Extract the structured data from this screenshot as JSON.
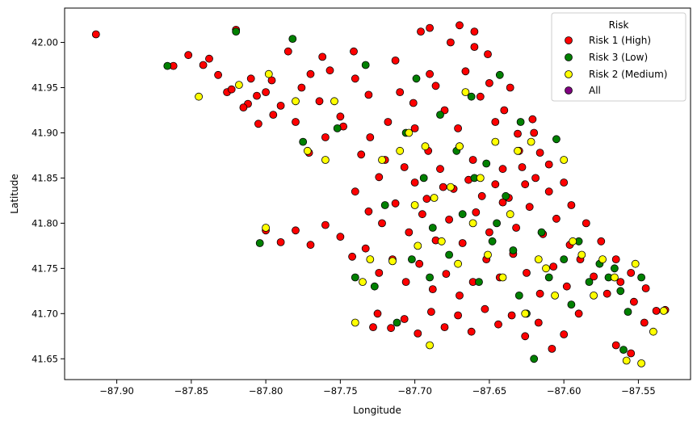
{
  "chart_data": {
    "type": "scatter",
    "title": "",
    "xlabel": "Longitude",
    "ylabel": "Latitude",
    "xlim": [
      -87.935,
      -87.515
    ],
    "ylim": [
      41.627,
      42.038
    ],
    "xticks": [
      -87.9,
      -87.85,
      -87.8,
      -87.75,
      -87.7,
      -87.65,
      -87.6,
      -87.55
    ],
    "xtick_labels": [
      "−87.90",
      "−87.85",
      "−87.80",
      "−87.75",
      "−87.70",
      "−87.65",
      "−87.60",
      "−87.55"
    ],
    "yticks": [
      41.65,
      41.7,
      41.75,
      41.8,
      41.85,
      41.9,
      41.95,
      42.0
    ],
    "ytick_labels": [
      "41.65",
      "41.70",
      "41.75",
      "41.80",
      "41.85",
      "41.90",
      "41.95",
      "42.00"
    ],
    "grid": false,
    "legend": {
      "title": "Risk",
      "placement": "top-right",
      "entries": [
        {
          "label": "Risk 1 (High)",
          "color": "#ff0000"
        },
        {
          "label": "Risk 3 (Low)",
          "color": "#008000"
        },
        {
          "label": "Risk 2 (Medium)",
          "color": "#ffff00"
        },
        {
          "label": "All",
          "color": "#800080"
        }
      ]
    },
    "series": [
      {
        "name": "Risk 1 (High)",
        "color": "#ff0000",
        "points": [
          [
            -87.914,
            42.009
          ],
          [
            -87.862,
            41.974
          ],
          [
            -87.852,
            41.986
          ],
          [
            -87.838,
            41.982
          ],
          [
            -87.826,
            41.945
          ],
          [
            -87.82,
            42.014
          ],
          [
            -87.812,
            41.932
          ],
          [
            -87.805,
            41.91
          ],
          [
            -87.796,
            41.958
          ],
          [
            -87.785,
            41.99
          ],
          [
            -87.776,
            41.95
          ],
          [
            -87.771,
            41.878
          ],
          [
            -87.764,
            41.935
          ],
          [
            -87.757,
            41.969
          ],
          [
            -87.748,
            41.907
          ],
          [
            -87.741,
            41.99
          ],
          [
            -87.736,
            41.876
          ],
          [
            -87.731,
            41.942
          ],
          [
            -87.724,
            41.851
          ],
          [
            -87.718,
            41.912
          ],
          [
            -87.713,
            41.98
          ],
          [
            -87.707,
            41.862
          ],
          [
            -87.701,
            41.933
          ],
          [
            -87.696,
            42.012
          ],
          [
            -87.691,
            41.88
          ],
          [
            -87.686,
            41.952
          ],
          [
            -87.681,
            41.84
          ],
          [
            -87.676,
            42.0
          ],
          [
            -87.671,
            41.905
          ],
          [
            -87.666,
            41.968
          ],
          [
            -87.661,
            41.87
          ],
          [
            -87.656,
            41.94
          ],
          [
            -87.651,
            41.987
          ],
          [
            -87.646,
            41.912
          ],
          [
            -87.641,
            41.86
          ],
          [
            -87.636,
            41.95
          ],
          [
            -87.631,
            41.899
          ],
          [
            -87.626,
            41.843
          ],
          [
            -87.621,
            41.915
          ],
          [
            -87.616,
            41.878
          ],
          [
            -87.61,
            41.835
          ],
          [
            -87.74,
            41.835
          ],
          [
            -87.731,
            41.813
          ],
          [
            -87.722,
            41.8
          ],
          [
            -87.713,
            41.822
          ],
          [
            -87.704,
            41.79
          ],
          [
            -87.695,
            41.81
          ],
          [
            -87.686,
            41.781
          ],
          [
            -87.677,
            41.804
          ],
          [
            -87.668,
            41.778
          ],
          [
            -87.659,
            41.812
          ],
          [
            -87.65,
            41.79
          ],
          [
            -87.641,
            41.823
          ],
          [
            -87.632,
            41.795
          ],
          [
            -87.623,
            41.818
          ],
          [
            -87.614,
            41.788
          ],
          [
            -87.605,
            41.805
          ],
          [
            -87.596,
            41.776
          ],
          [
            -87.8,
            41.792
          ],
          [
            -87.79,
            41.779
          ],
          [
            -87.78,
            41.792
          ],
          [
            -87.77,
            41.776
          ],
          [
            -87.76,
            41.798
          ],
          [
            -87.75,
            41.785
          ],
          [
            -87.742,
            41.763
          ],
          [
            -87.733,
            41.772
          ],
          [
            -87.724,
            41.745
          ],
          [
            -87.715,
            41.76
          ],
          [
            -87.706,
            41.735
          ],
          [
            -87.697,
            41.755
          ],
          [
            -87.688,
            41.727
          ],
          [
            -87.679,
            41.744
          ],
          [
            -87.67,
            41.72
          ],
          [
            -87.661,
            41.735
          ],
          [
            -87.652,
            41.76
          ],
          [
            -87.643,
            41.74
          ],
          [
            -87.634,
            41.766
          ],
          [
            -87.625,
            41.745
          ],
          [
            -87.616,
            41.722
          ],
          [
            -87.607,
            41.752
          ],
          [
            -87.598,
            41.73
          ],
          [
            -87.589,
            41.76
          ],
          [
            -87.58,
            41.741
          ],
          [
            -87.571,
            41.722
          ],
          [
            -87.562,
            41.735
          ],
          [
            -87.553,
            41.713
          ],
          [
            -87.545,
            41.728
          ],
          [
            -87.538,
            41.703
          ],
          [
            -87.532,
            41.704
          ],
          [
            -87.546,
            41.69
          ],
          [
            -87.555,
            41.656
          ],
          [
            -87.565,
            41.665
          ],
          [
            -87.725,
            41.7
          ],
          [
            -87.716,
            41.684
          ],
          [
            -87.707,
            41.694
          ],
          [
            -87.698,
            41.678
          ],
          [
            -87.689,
            41.702
          ],
          [
            -87.68,
            41.685
          ],
          [
            -87.671,
            41.698
          ],
          [
            -87.662,
            41.68
          ],
          [
            -87.653,
            41.705
          ],
          [
            -87.644,
            41.688
          ],
          [
            -87.635,
            41.698
          ],
          [
            -87.626,
            41.675
          ],
          [
            -87.617,
            41.69
          ],
          [
            -87.608,
            41.661
          ],
          [
            -87.6,
            41.677
          ],
          [
            -87.59,
            41.7
          ],
          [
            -87.728,
            41.685
          ],
          [
            -87.7,
            41.845
          ],
          [
            -87.692,
            41.827
          ],
          [
            -87.683,
            41.86
          ],
          [
            -87.674,
            41.838
          ],
          [
            -87.664,
            41.848
          ],
          [
            -87.655,
            41.83
          ],
          [
            -87.646,
            41.843
          ],
          [
            -87.637,
            41.828
          ],
          [
            -87.628,
            41.862
          ],
          [
            -87.619,
            41.85
          ],
          [
            -87.61,
            41.865
          ],
          [
            -87.6,
            41.845
          ],
          [
            -87.595,
            41.82
          ],
          [
            -87.585,
            41.8
          ],
          [
            -87.575,
            41.78
          ],
          [
            -87.565,
            41.76
          ],
          [
            -87.555,
            41.745
          ],
          [
            -87.76,
            41.895
          ],
          [
            -87.75,
            41.918
          ],
          [
            -87.74,
            41.96
          ],
          [
            -87.73,
            41.895
          ],
          [
            -87.72,
            41.87
          ],
          [
            -87.71,
            41.945
          ],
          [
            -87.7,
            41.905
          ],
          [
            -87.69,
            41.965
          ],
          [
            -87.68,
            41.925
          ],
          [
            -87.67,
            41.885
          ],
          [
            -87.66,
            41.995
          ],
          [
            -87.65,
            41.955
          ],
          [
            -87.64,
            41.925
          ],
          [
            -87.63,
            41.88
          ],
          [
            -87.62,
            41.9
          ],
          [
            -87.69,
            42.016
          ],
          [
            -87.67,
            42.019
          ],
          [
            -87.66,
            42.012
          ],
          [
            -87.78,
            41.912
          ],
          [
            -87.79,
            41.93
          ],
          [
            -87.8,
            41.945
          ],
          [
            -87.81,
            41.96
          ],
          [
            -87.77,
            41.965
          ],
          [
            -87.762,
            41.984
          ],
          [
            -87.832,
            41.964
          ],
          [
            -87.842,
            41.975
          ],
          [
            -87.823,
            41.948
          ],
          [
            -87.815,
            41.928
          ],
          [
            -87.806,
            41.941
          ],
          [
            -87.795,
            41.92
          ]
        ]
      },
      {
        "name": "Risk 3 (Low)",
        "color": "#008000",
        "points": [
          [
            -87.866,
            41.974
          ],
          [
            -87.82,
            42.012
          ],
          [
            -87.804,
            41.778
          ],
          [
            -87.782,
            42.004
          ],
          [
            -87.775,
            41.89
          ],
          [
            -87.752,
            41.905
          ],
          [
            -87.74,
            41.74
          ],
          [
            -87.733,
            41.975
          ],
          [
            -87.727,
            41.73
          ],
          [
            -87.72,
            41.82
          ],
          [
            -87.712,
            41.69
          ],
          [
            -87.706,
            41.9
          ],
          [
            -87.699,
            41.96
          ],
          [
            -87.694,
            41.85
          ],
          [
            -87.688,
            41.795
          ],
          [
            -87.683,
            41.92
          ],
          [
            -87.677,
            41.765
          ],
          [
            -87.672,
            41.88
          ],
          [
            -87.668,
            41.81
          ],
          [
            -87.662,
            41.94
          ],
          [
            -87.657,
            41.735
          ],
          [
            -87.652,
            41.866
          ],
          [
            -87.648,
            41.78
          ],
          [
            -87.643,
            41.964
          ],
          [
            -87.639,
            41.83
          ],
          [
            -87.634,
            41.77
          ],
          [
            -87.629,
            41.912
          ],
          [
            -87.625,
            41.7
          ],
          [
            -87.62,
            41.65
          ],
          [
            -87.615,
            41.79
          ],
          [
            -87.61,
            41.74
          ],
          [
            -87.605,
            41.893
          ],
          [
            -87.6,
            41.76
          ],
          [
            -87.595,
            41.71
          ],
          [
            -87.59,
            41.78
          ],
          [
            -87.583,
            41.735
          ],
          [
            -87.576,
            41.755
          ],
          [
            -87.57,
            41.74
          ],
          [
            -87.562,
            41.725
          ],
          [
            -87.56,
            41.66
          ],
          [
            -87.548,
            41.74
          ],
          [
            -87.557,
            41.702
          ],
          [
            -87.566,
            41.75
          ],
          [
            -87.66,
            41.85
          ],
          [
            -87.645,
            41.8
          ],
          [
            -87.63,
            41.72
          ],
          [
            -87.702,
            41.76
          ],
          [
            -87.69,
            41.74
          ]
        ]
      },
      {
        "name": "Risk 2 (Medium)",
        "color": "#ffff00",
        "points": [
          [
            -87.845,
            41.94
          ],
          [
            -87.818,
            41.953
          ],
          [
            -87.8,
            41.795
          ],
          [
            -87.798,
            41.965
          ],
          [
            -87.78,
            41.935
          ],
          [
            -87.772,
            41.88
          ],
          [
            -87.76,
            41.87
          ],
          [
            -87.754,
            41.935
          ],
          [
            -87.74,
            41.69
          ],
          [
            -87.735,
            41.735
          ],
          [
            -87.73,
            41.76
          ],
          [
            -87.722,
            41.87
          ],
          [
            -87.715,
            41.758
          ],
          [
            -87.71,
            41.88
          ],
          [
            -87.704,
            41.9
          ],
          [
            -87.698,
            41.775
          ],
          [
            -87.693,
            41.885
          ],
          [
            -87.687,
            41.828
          ],
          [
            -87.682,
            41.78
          ],
          [
            -87.676,
            41.84
          ],
          [
            -87.671,
            41.755
          ],
          [
            -87.666,
            41.945
          ],
          [
            -87.661,
            41.8
          ],
          [
            -87.656,
            41.85
          ],
          [
            -87.651,
            41.765
          ],
          [
            -87.646,
            41.89
          ],
          [
            -87.641,
            41.74
          ],
          [
            -87.636,
            41.81
          ],
          [
            -87.631,
            41.88
          ],
          [
            -87.626,
            41.7
          ],
          [
            -87.622,
            41.89
          ],
          [
            -87.617,
            41.76
          ],
          [
            -87.612,
            41.75
          ],
          [
            -87.606,
            41.72
          ],
          [
            -87.6,
            41.87
          ],
          [
            -87.594,
            41.78
          ],
          [
            -87.588,
            41.765
          ],
          [
            -87.58,
            41.72
          ],
          [
            -87.574,
            41.76
          ],
          [
            -87.566,
            41.74
          ],
          [
            -87.558,
            41.648
          ],
          [
            -87.552,
            41.755
          ],
          [
            -87.54,
            41.68
          ],
          [
            -87.533,
            41.703
          ],
          [
            -87.548,
            41.645
          ],
          [
            -87.69,
            41.665
          ],
          [
            -87.67,
            41.885
          ],
          [
            -87.7,
            41.82
          ]
        ]
      },
      {
        "name": "All",
        "color": "#800080",
        "points": []
      }
    ]
  }
}
